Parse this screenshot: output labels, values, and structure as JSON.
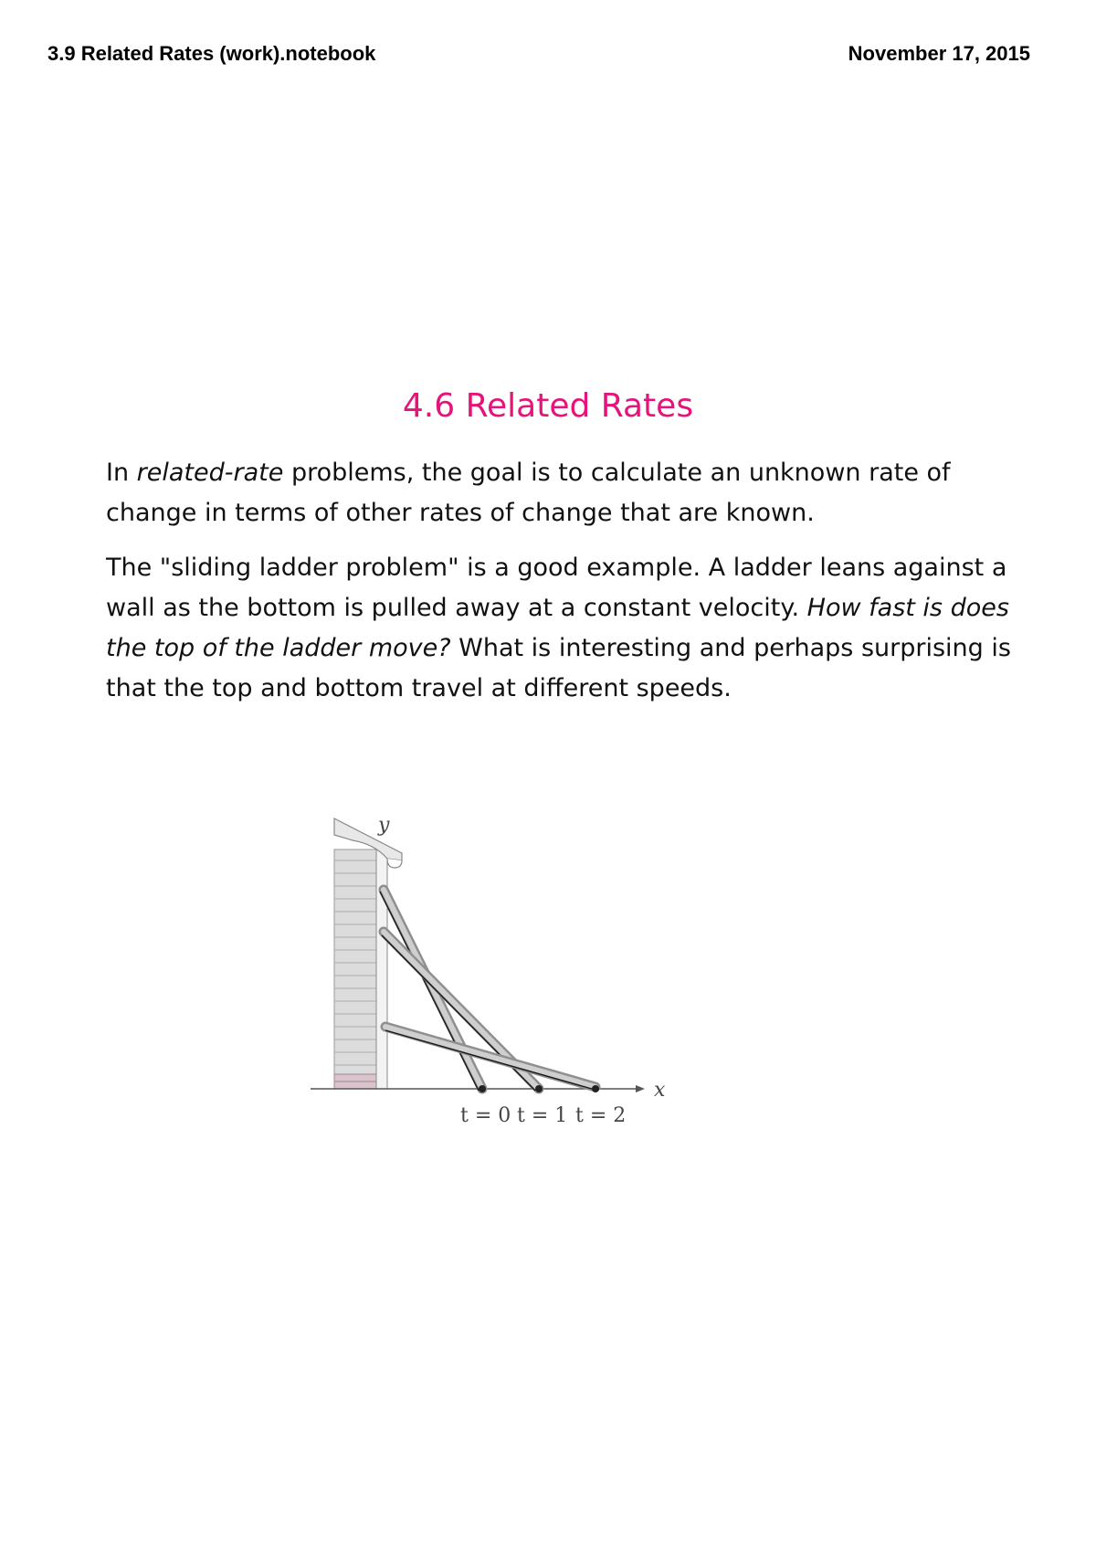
{
  "header": {
    "left": "3.9 Related Rates (work).notebook",
    "right": "November 17, 2015"
  },
  "title": "4.6 Related Rates",
  "paragraph1": {
    "part1": "In ",
    "part2_italic": "related-rate",
    "part3": " problems, the goal is to calculate an unknown rate of change in terms of other rates of change that are known."
  },
  "paragraph2": {
    "part1": " The \"sliding ladder problem\" is a good example.  A ladder leans against a wall as the bottom is pulled away at a constant velocity.  ",
    "part2_italic": "How fast is does the top of the ladder move?",
    "part3": "  What is interesting and perhaps surprising is that the top and bottom travel at different speeds."
  },
  "figure": {
    "y_axis_label": "y",
    "x_axis_label": "x",
    "time_labels": [
      "t = 0",
      "t = 1",
      "t = 2"
    ]
  }
}
